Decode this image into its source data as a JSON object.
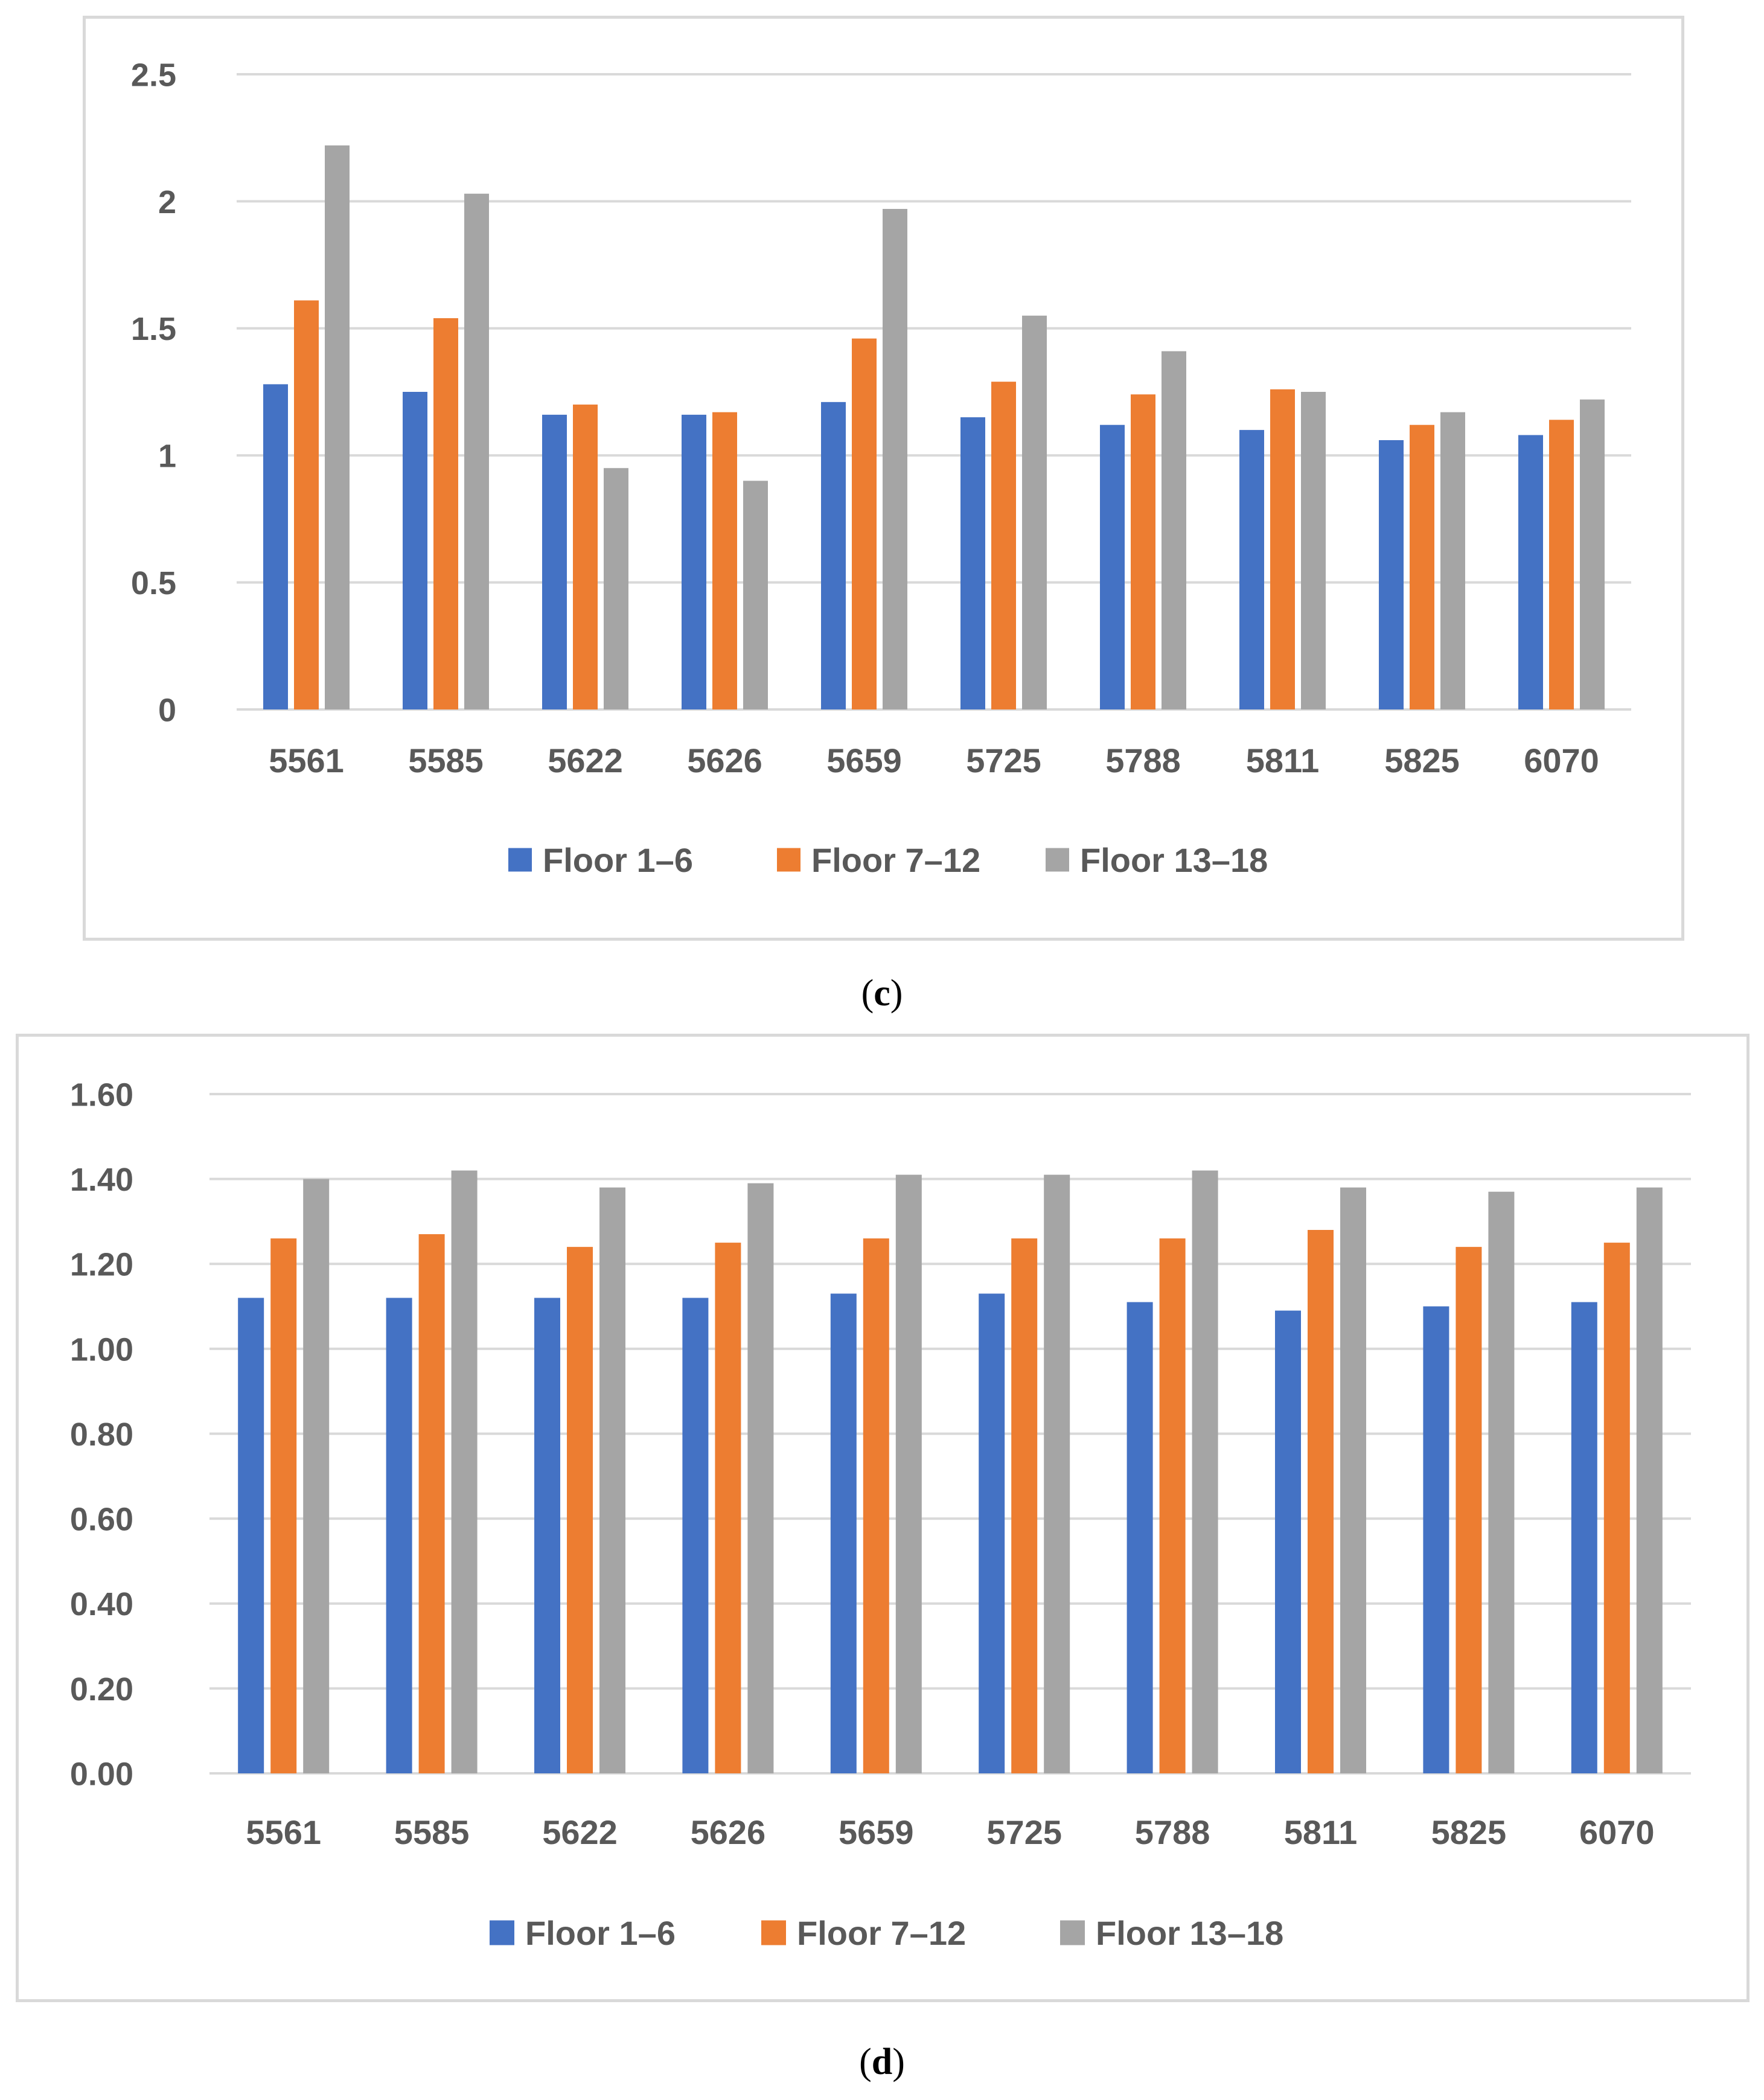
{
  "charts_meta": {
    "caption_c": "c",
    "caption_d": "d"
  },
  "chart_data": [
    {
      "id": "c",
      "type": "bar",
      "title": "",
      "xlabel": "",
      "ylabel": "",
      "categories": [
        "5561",
        "5585",
        "5622",
        "5626",
        "5659",
        "5725",
        "5788",
        "5811",
        "5825",
        "6070"
      ],
      "ylim": [
        0,
        2.5
      ],
      "yticks": [
        0,
        0.5,
        1,
        1.5,
        2,
        2.5
      ],
      "ytick_labels": [
        "0",
        "0.5",
        "1",
        "1.5",
        "2",
        "2.5"
      ],
      "grid": true,
      "legend_position": "bottom",
      "series": [
        {
          "name": "Floor 1–6",
          "color": "#4472c4",
          "values": [
            1.28,
            1.25,
            1.16,
            1.16,
            1.21,
            1.15,
            1.12,
            1.1,
            1.06,
            1.08
          ]
        },
        {
          "name": "Floor 7–12",
          "color": "#ed7d31",
          "values": [
            1.61,
            1.54,
            1.2,
            1.17,
            1.46,
            1.29,
            1.24,
            1.26,
            1.12,
            1.14
          ]
        },
        {
          "name": "Floor 13–18",
          "color": "#a5a5a5",
          "values": [
            2.22,
            2.03,
            0.95,
            0.9,
            1.97,
            1.55,
            1.41,
            1.25,
            1.17,
            1.22
          ]
        }
      ]
    },
    {
      "id": "d",
      "type": "bar",
      "title": "",
      "xlabel": "",
      "ylabel": "",
      "categories": [
        "5561",
        "5585",
        "5622",
        "5626",
        "5659",
        "5725",
        "5788",
        "5811",
        "5825",
        "6070"
      ],
      "ylim": [
        0,
        1.6
      ],
      "yticks": [
        0,
        0.2,
        0.4,
        0.6,
        0.8,
        1.0,
        1.2,
        1.4,
        1.6
      ],
      "ytick_labels": [
        "0.00",
        "0.20",
        "0.40",
        "0.60",
        "0.80",
        "1.00",
        "1.20",
        "1.40",
        "1.60"
      ],
      "grid": true,
      "legend_position": "bottom",
      "series": [
        {
          "name": "Floor 1–6",
          "color": "#4472c4",
          "values": [
            1.12,
            1.12,
            1.12,
            1.12,
            1.13,
            1.13,
            1.11,
            1.09,
            1.1,
            1.11
          ]
        },
        {
          "name": "Floor 7–12",
          "color": "#ed7d31",
          "values": [
            1.26,
            1.27,
            1.24,
            1.25,
            1.26,
            1.26,
            1.26,
            1.28,
            1.24,
            1.25
          ]
        },
        {
          "name": "Floor 13–18",
          "color": "#a5a5a5",
          "values": [
            1.4,
            1.42,
            1.38,
            1.39,
            1.41,
            1.41,
            1.42,
            1.38,
            1.37,
            1.38
          ]
        }
      ]
    }
  ]
}
